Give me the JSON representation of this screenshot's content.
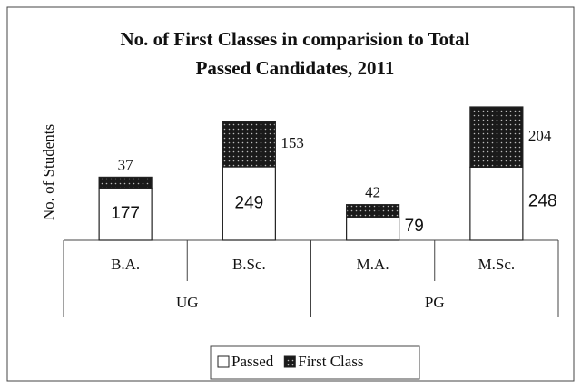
{
  "chart_data": {
    "type": "stacked_bar",
    "title": [
      "No. of First Classes in comparision to Total",
      "Passed Candidates, 2011"
    ],
    "y_label": "No. of Students",
    "groups": [
      {
        "name": "UG",
        "categories": [
          "B.A.",
          "B.Sc."
        ]
      },
      {
        "name": "PG",
        "categories": [
          "M.A.",
          "M.Sc."
        ]
      }
    ],
    "series": [
      {
        "name": "Passed",
        "color": "#ffffff",
        "values": [
          177,
          249,
          79,
          248
        ]
      },
      {
        "name": "First Class",
        "color": "#1a1a1a",
        "values": [
          37,
          153,
          42,
          204
        ]
      }
    ],
    "legend": "bottom"
  }
}
